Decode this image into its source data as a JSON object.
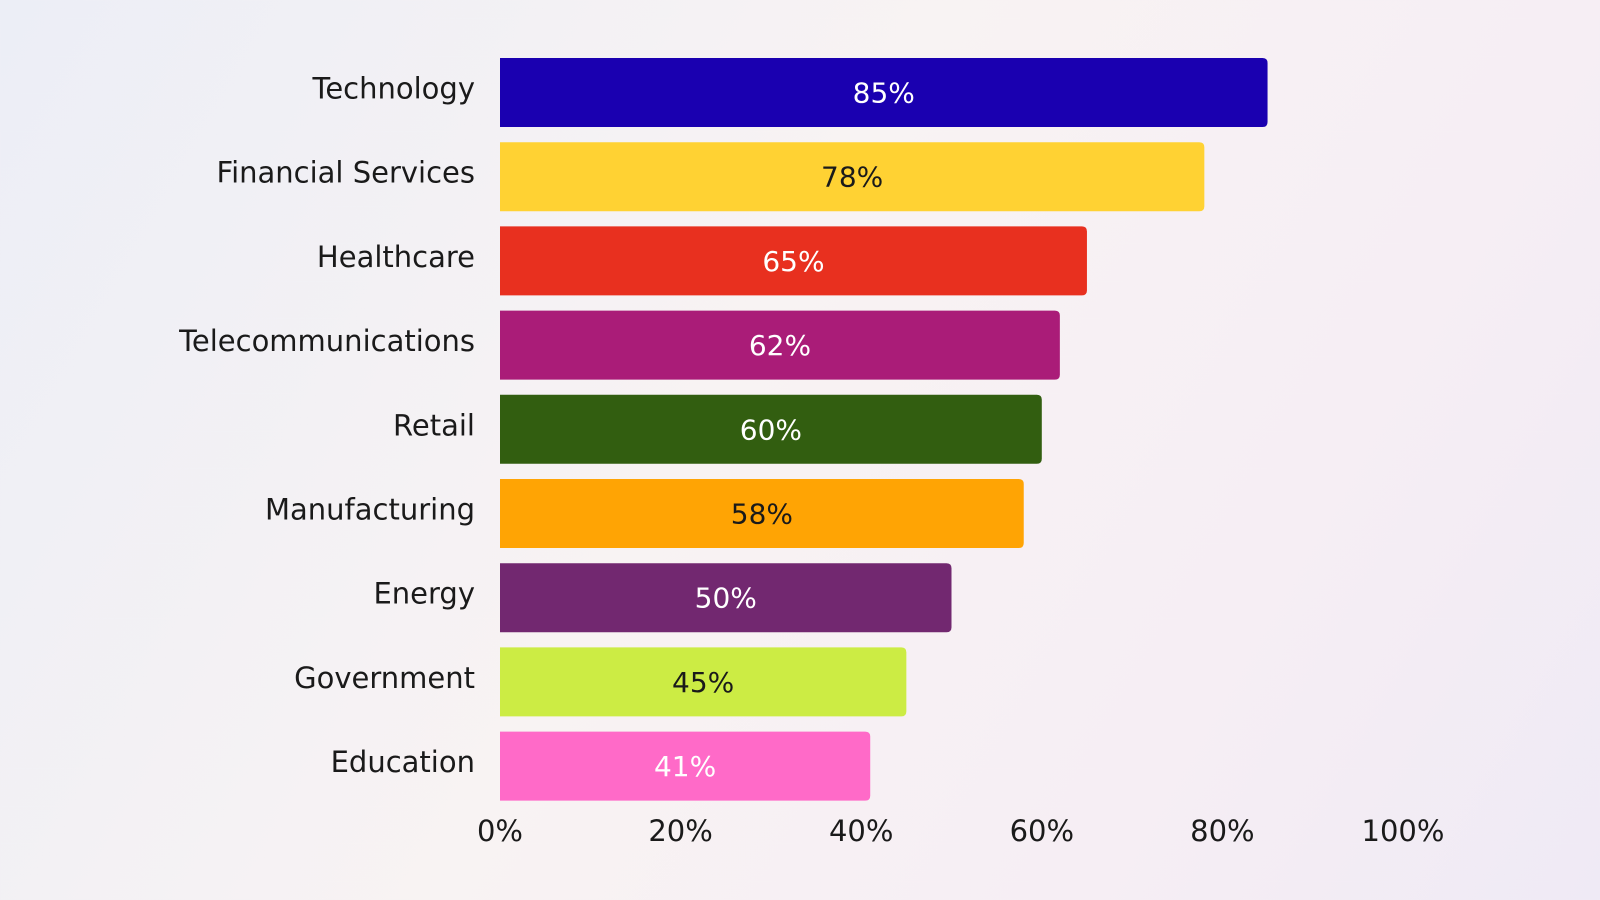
{
  "chart_data": {
    "type": "hbar",
    "categories": [
      "Technology",
      "Financial Services",
      "Healthcare",
      "Telecommunications",
      "Retail",
      "Manufacturing",
      "Energy",
      "Government",
      "Education"
    ],
    "values": [
      85,
      78,
      65,
      62,
      60,
      58,
      50,
      45,
      41
    ],
    "value_labels": [
      "85%",
      "78%",
      "65%",
      "62%",
      "60%",
      "58%",
      "50%",
      "45%",
      "41%"
    ],
    "colors": [
      "#1a00b0",
      "#ffd233",
      "#e8301f",
      "#aa1c78",
      "#325e10",
      "#ffa404",
      "#722870",
      "#ccec44",
      "#ff6ac8"
    ],
    "xlim": [
      0,
      100
    ],
    "xticks": [
      {
        "value": 0,
        "label": "0%"
      },
      {
        "value": 20,
        "label": "20%"
      },
      {
        "value": 40,
        "label": "40%"
      },
      {
        "value": 60,
        "label": "60%"
      },
      {
        "value": 80,
        "label": "80%"
      },
      {
        "value": 100,
        "label": "100%"
      }
    ],
    "grid": false
  }
}
